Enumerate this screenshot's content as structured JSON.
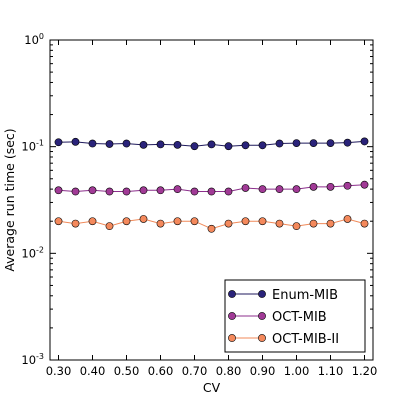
{
  "chart_data": {
    "type": "line",
    "xlabel": "CV",
    "ylabel": "Average run time (sec)",
    "yscale": "log",
    "xlim": [
      0.275,
      1.225
    ],
    "ylim": [
      0.001,
      1
    ],
    "x_ticks": [
      "0.30",
      "0.40",
      "0.50",
      "0.60",
      "0.70",
      "0.80",
      "0.90",
      "1.00",
      "1.10",
      "1.20"
    ],
    "y_ticks": [
      {
        "value": 0.001,
        "base": "10",
        "exp": "-3"
      },
      {
        "value": 0.01,
        "base": "10",
        "exp": "-2"
      },
      {
        "value": 0.1,
        "base": "10",
        "exp": "-1"
      },
      {
        "value": 1,
        "base": "10",
        "exp": "0"
      }
    ],
    "grid": false,
    "legend_position": "bottom-right",
    "x": [
      0.3,
      0.35,
      0.4,
      0.45,
      0.5,
      0.55,
      0.6,
      0.65,
      0.7,
      0.75,
      0.8,
      0.85,
      0.9,
      0.95,
      1.0,
      1.05,
      1.1,
      1.15,
      1.2
    ],
    "series": [
      {
        "name": "Enum-MIB",
        "line_color": "#1f1a5c",
        "marker_color": "#2a237a",
        "values": [
          0.11,
          0.111,
          0.107,
          0.106,
          0.107,
          0.104,
          0.105,
          0.104,
          0.101,
          0.105,
          0.101,
          0.103,
          0.103,
          0.107,
          0.108,
          0.108,
          0.108,
          0.109,
          0.112
        ]
      },
      {
        "name": "OCT-MIB",
        "line_color": "#8c2f8c",
        "marker_color": "#a13a96",
        "values": [
          0.039,
          0.038,
          0.039,
          0.038,
          0.038,
          0.039,
          0.039,
          0.04,
          0.038,
          0.038,
          0.038,
          0.041,
          0.04,
          0.04,
          0.04,
          0.042,
          0.042,
          0.043,
          0.044
        ]
      },
      {
        "name": "OCT-MIB-II",
        "line_color": "#f08a5a",
        "marker_color": "#f4895c",
        "values": [
          0.02,
          0.019,
          0.02,
          0.018,
          0.02,
          0.021,
          0.019,
          0.02,
          0.02,
          0.017,
          0.019,
          0.02,
          0.02,
          0.019,
          0.018,
          0.019,
          0.019,
          0.021,
          0.019
        ]
      }
    ]
  }
}
